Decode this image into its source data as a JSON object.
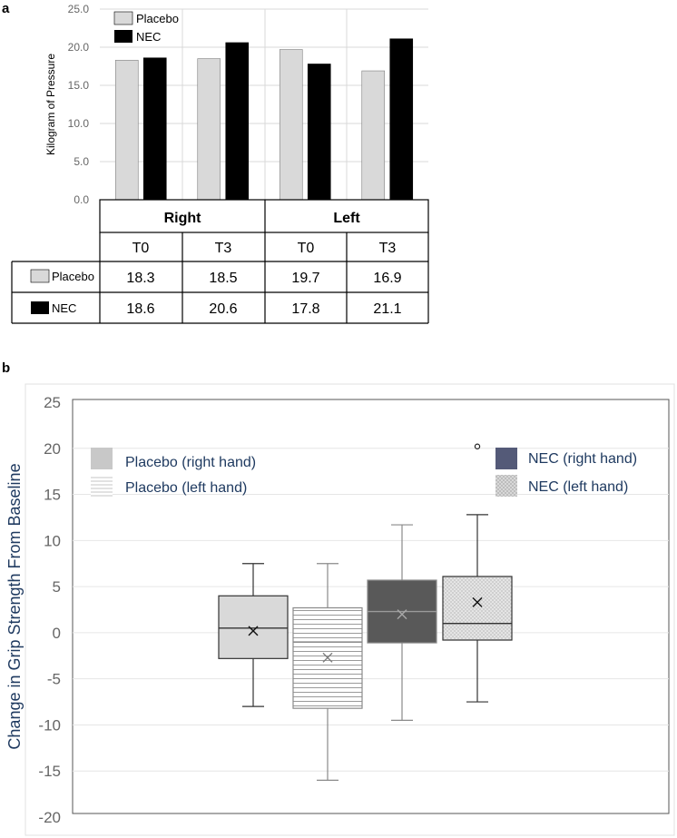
{
  "chart_data": [
    {
      "panel_label": "a",
      "type": "bar",
      "ylabel": "Kilogram of Pressure",
      "ylim": [
        0,
        25
      ],
      "yticks": [
        "0.0",
        "5.0",
        "10.0",
        "15.0",
        "20.0",
        "25.0"
      ],
      "groups": [
        "Right",
        "Left"
      ],
      "categories": [
        "T0",
        "T3",
        "T0",
        "T3"
      ],
      "series": [
        {
          "name": "Placebo",
          "color": "#d9d9d9",
          "values": [
            18.3,
            18.5,
            19.7,
            16.9
          ]
        },
        {
          "name": "NEC",
          "color": "#000000",
          "values": [
            18.6,
            20.6,
            17.8,
            21.1
          ]
        }
      ],
      "table": {
        "rows": [
          {
            "label": "Placebo",
            "cells": [
              "18.3",
              "18.5",
              "19.7",
              "16.9"
            ]
          },
          {
            "label": "NEC",
            "cells": [
              "18.6",
              "20.6",
              "17.8",
              "21.1"
            ]
          }
        ]
      }
    },
    {
      "panel_label": "b",
      "type": "box",
      "ylabel": "Change in Grip Strength From Baseline",
      "ylim": [
        -20,
        25
      ],
      "yticks": [
        "-20",
        "-15",
        "-10",
        "-5",
        "0",
        "5",
        "10",
        "15",
        "20",
        "25"
      ],
      "series": [
        {
          "name": "Placebo (right hand)",
          "fill": "#d9d9d9",
          "pattern": "solid",
          "min": -8,
          "q1": -2.8,
          "median": 0.5,
          "q3": 4,
          "max": 7.5,
          "mean": 0.2,
          "outliers": []
        },
        {
          "name": "Placebo (left hand)",
          "fill": "#ffffff",
          "pattern": "horizontal-lines",
          "min": -16,
          "q1": -8.2,
          "median": -1,
          "q3": 2.7,
          "max": 7.5,
          "mean": -2.7,
          "outliers": []
        },
        {
          "name": "NEC (right hand)",
          "fill": "#595959",
          "pattern": "solid",
          "min": -9.5,
          "q1": -1.1,
          "median": 2.3,
          "q3": 5.7,
          "max": 11.7,
          "mean": 2,
          "outliers": []
        },
        {
          "name": "NEC (left hand)",
          "fill": "#d0d0d0",
          "pattern": "dots",
          "min": -7.5,
          "q1": -0.8,
          "median": 1,
          "q3": 6.1,
          "max": 12.8,
          "mean": 3.3,
          "outliers": [
            20.2
          ]
        }
      ],
      "legend_colors": [
        "#c8c8c8",
        "#e8e8e8",
        "#545a78",
        "#c8c8c8"
      ]
    }
  ]
}
